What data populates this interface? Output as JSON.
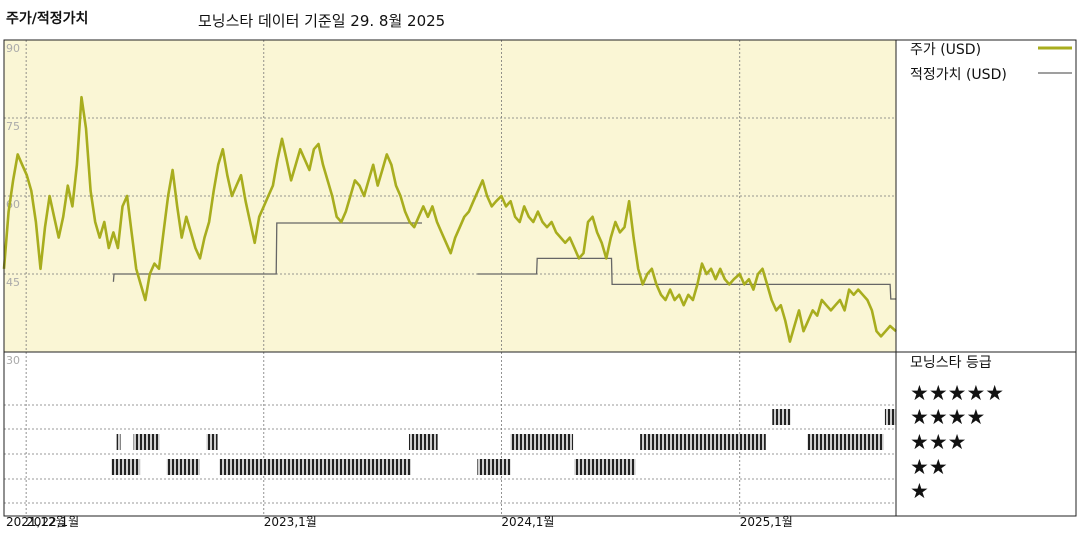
{
  "header": {
    "left_title": "주가/적정가치",
    "source": "모닝스타 데이터 기준일 29. 8월 2025"
  },
  "chart_data": {
    "type": "line",
    "y_ticks": [
      "90",
      "75",
      "60",
      "45",
      "30"
    ],
    "ylim": [
      30,
      90
    ],
    "x_ticks": [
      {
        "label": "2021,12월",
        "date": "2021-12"
      },
      {
        "label": "2022,1월",
        "date": "2022-01"
      },
      {
        "label": "2023,1월",
        "date": "2023-01"
      },
      {
        "label": "2024,1월",
        "date": "2024-01"
      },
      {
        "label": "2025,1월",
        "date": "2025-01"
      }
    ],
    "series": [
      {
        "name": "주가 (USD)",
        "color": "#a8ad1e",
        "points": [
          [
            "2021-11-28",
            46
          ],
          [
            "2021-12-05",
            57
          ],
          [
            "2021-12-12",
            63
          ],
          [
            "2021-12-19",
            68
          ],
          [
            "2021-12-26",
            66
          ],
          [
            "2022-01-02",
            64
          ],
          [
            "2022-01-09",
            61
          ],
          [
            "2022-01-16",
            55
          ],
          [
            "2022-01-23",
            46
          ],
          [
            "2022-01-30",
            54
          ],
          [
            "2022-02-06",
            60
          ],
          [
            "2022-02-13",
            56
          ],
          [
            "2022-02-20",
            52
          ],
          [
            "2022-02-27",
            56
          ],
          [
            "2022-03-06",
            62
          ],
          [
            "2022-03-13",
            58
          ],
          [
            "2022-03-20",
            66
          ],
          [
            "2022-03-27",
            79
          ],
          [
            "2022-04-03",
            73
          ],
          [
            "2022-04-10",
            61
          ],
          [
            "2022-04-17",
            55
          ],
          [
            "2022-04-24",
            52
          ],
          [
            "2022-05-01",
            55
          ],
          [
            "2022-05-08",
            50
          ],
          [
            "2022-05-15",
            53
          ],
          [
            "2022-05-22",
            50
          ],
          [
            "2022-05-29",
            58
          ],
          [
            "2022-06-05",
            60
          ],
          [
            "2022-06-12",
            53
          ],
          [
            "2022-06-19",
            46
          ],
          [
            "2022-06-26",
            43
          ],
          [
            "2022-07-03",
            40
          ],
          [
            "2022-07-10",
            45
          ],
          [
            "2022-07-17",
            47
          ],
          [
            "2022-07-24",
            46
          ],
          [
            "2022-07-31",
            53
          ],
          [
            "2022-08-07",
            60
          ],
          [
            "2022-08-14",
            65
          ],
          [
            "2022-08-21",
            58
          ],
          [
            "2022-08-28",
            52
          ],
          [
            "2022-09-04",
            56
          ],
          [
            "2022-09-11",
            53
          ],
          [
            "2022-09-18",
            50
          ],
          [
            "2022-09-25",
            48
          ],
          [
            "2022-10-02",
            52
          ],
          [
            "2022-10-09",
            55
          ],
          [
            "2022-10-16",
            61
          ],
          [
            "2022-10-23",
            66
          ],
          [
            "2022-10-30",
            69
          ],
          [
            "2022-11-06",
            64
          ],
          [
            "2022-11-13",
            60
          ],
          [
            "2022-11-20",
            62
          ],
          [
            "2022-11-27",
            64
          ],
          [
            "2022-12-04",
            59
          ],
          [
            "2022-12-11",
            55
          ],
          [
            "2022-12-18",
            51
          ],
          [
            "2022-12-25",
            56
          ],
          [
            "2023-01-01",
            58
          ],
          [
            "2023-01-08",
            60
          ],
          [
            "2023-01-15",
            62
          ],
          [
            "2023-01-22",
            67
          ],
          [
            "2023-01-29",
            71
          ],
          [
            "2023-02-05",
            67
          ],
          [
            "2023-02-12",
            63
          ],
          [
            "2023-02-19",
            66
          ],
          [
            "2023-02-26",
            69
          ],
          [
            "2023-03-05",
            67
          ],
          [
            "2023-03-12",
            65
          ],
          [
            "2023-03-19",
            69
          ],
          [
            "2023-03-26",
            70
          ],
          [
            "2023-04-02",
            66
          ],
          [
            "2023-04-09",
            63
          ],
          [
            "2023-04-16",
            60
          ],
          [
            "2023-04-23",
            56
          ],
          [
            "2023-04-30",
            55
          ],
          [
            "2023-05-07",
            57
          ],
          [
            "2023-05-14",
            60
          ],
          [
            "2023-05-21",
            63
          ],
          [
            "2023-05-28",
            62
          ],
          [
            "2023-06-04",
            60
          ],
          [
            "2023-06-11",
            63
          ],
          [
            "2023-06-18",
            66
          ],
          [
            "2023-06-25",
            62
          ],
          [
            "2023-07-02",
            65
          ],
          [
            "2023-07-09",
            68
          ],
          [
            "2023-07-16",
            66
          ],
          [
            "2023-07-23",
            62
          ],
          [
            "2023-07-30",
            60
          ],
          [
            "2023-08-06",
            57
          ],
          [
            "2023-08-13",
            55
          ],
          [
            "2023-08-20",
            54
          ],
          [
            "2023-08-27",
            56
          ],
          [
            "2023-09-03",
            58
          ],
          [
            "2023-09-10",
            56
          ],
          [
            "2023-09-17",
            58
          ],
          [
            "2023-09-24",
            55
          ],
          [
            "2023-10-01",
            53
          ],
          [
            "2023-10-08",
            51
          ],
          [
            "2023-10-15",
            49
          ],
          [
            "2023-10-22",
            52
          ],
          [
            "2023-10-29",
            54
          ],
          [
            "2023-11-05",
            56
          ],
          [
            "2023-11-12",
            57
          ],
          [
            "2023-11-19",
            59
          ],
          [
            "2023-11-26",
            61
          ],
          [
            "2023-12-03",
            63
          ],
          [
            "2023-12-10",
            60
          ],
          [
            "2023-12-17",
            58
          ],
          [
            "2023-12-24",
            59
          ],
          [
            "2024-01-01",
            60
          ],
          [
            "2024-01-08",
            58
          ],
          [
            "2024-01-15",
            59
          ],
          [
            "2024-01-22",
            56
          ],
          [
            "2024-01-29",
            55
          ],
          [
            "2024-02-05",
            58
          ],
          [
            "2024-02-12",
            56
          ],
          [
            "2024-02-19",
            55
          ],
          [
            "2024-02-26",
            57
          ],
          [
            "2024-03-04",
            55
          ],
          [
            "2024-03-11",
            54
          ],
          [
            "2024-03-18",
            55
          ],
          [
            "2024-03-25",
            53
          ],
          [
            "2024-04-01",
            52
          ],
          [
            "2024-04-08",
            51
          ],
          [
            "2024-04-15",
            52
          ],
          [
            "2024-04-22",
            50
          ],
          [
            "2024-04-29",
            48
          ],
          [
            "2024-05-06",
            49
          ],
          [
            "2024-05-13",
            55
          ],
          [
            "2024-05-20",
            56
          ],
          [
            "2024-05-27",
            53
          ],
          [
            "2024-06-03",
            51
          ],
          [
            "2024-06-10",
            48
          ],
          [
            "2024-06-17",
            52
          ],
          [
            "2024-06-24",
            55
          ],
          [
            "2024-07-01",
            53
          ],
          [
            "2024-07-08",
            54
          ],
          [
            "2024-07-15",
            59
          ],
          [
            "2024-07-22",
            52
          ],
          [
            "2024-07-29",
            46
          ],
          [
            "2024-08-05",
            43
          ],
          [
            "2024-08-12",
            45
          ],
          [
            "2024-08-19",
            46
          ],
          [
            "2024-08-26",
            43
          ],
          [
            "2024-09-02",
            41
          ],
          [
            "2024-09-09",
            40
          ],
          [
            "2024-09-16",
            42
          ],
          [
            "2024-09-23",
            40
          ],
          [
            "2024-09-30",
            41
          ],
          [
            "2024-10-07",
            39
          ],
          [
            "2024-10-14",
            41
          ],
          [
            "2024-10-21",
            40
          ],
          [
            "2024-10-28",
            43
          ],
          [
            "2024-11-04",
            47
          ],
          [
            "2024-11-11",
            45
          ],
          [
            "2024-11-18",
            46
          ],
          [
            "2024-11-25",
            44
          ],
          [
            "2024-12-02",
            46
          ],
          [
            "2024-12-09",
            44
          ],
          [
            "2024-12-16",
            43
          ],
          [
            "2024-12-23",
            44
          ],
          [
            "2025-01-01",
            45
          ],
          [
            "2025-01-08",
            43
          ],
          [
            "2025-01-15",
            44
          ],
          [
            "2025-01-22",
            42
          ],
          [
            "2025-01-29",
            45
          ],
          [
            "2025-02-05",
            46
          ],
          [
            "2025-02-12",
            43
          ],
          [
            "2025-02-19",
            40
          ],
          [
            "2025-02-26",
            38
          ],
          [
            "2025-03-05",
            39
          ],
          [
            "2025-03-12",
            36
          ],
          [
            "2025-03-19",
            32
          ],
          [
            "2025-03-26",
            35
          ],
          [
            "2025-04-02",
            38
          ],
          [
            "2025-04-09",
            34
          ],
          [
            "2025-04-16",
            36
          ],
          [
            "2025-04-23",
            38
          ],
          [
            "2025-04-30",
            37
          ],
          [
            "2025-05-07",
            40
          ],
          [
            "2025-05-14",
            39
          ],
          [
            "2025-05-21",
            38
          ],
          [
            "2025-05-28",
            39
          ],
          [
            "2025-06-04",
            40
          ],
          [
            "2025-06-11",
            38
          ],
          [
            "2025-06-18",
            42
          ],
          [
            "2025-06-25",
            41
          ],
          [
            "2025-07-02",
            42
          ],
          [
            "2025-07-09",
            41
          ],
          [
            "2025-07-16",
            40
          ],
          [
            "2025-07-23",
            38
          ],
          [
            "2025-07-30",
            34
          ],
          [
            "2025-08-06",
            33
          ],
          [
            "2025-08-13",
            34
          ],
          [
            "2025-08-20",
            35
          ],
          [
            "2025-08-29",
            34
          ]
        ]
      },
      {
        "name": "적정가치 (USD)",
        "color": "#666666",
        "segments": [
          [
            [
              "2022-05-15",
              43.5
            ],
            [
              "2022-05-16",
              45
            ],
            [
              "2023-01-20",
              45
            ],
            [
              "2023-01-21",
              54.8
            ],
            [
              "2023-09-01",
              54.8
            ]
          ],
          [
            [
              "2023-11-25",
              45
            ],
            [
              "2024-02-24",
              45
            ],
            [
              "2024-02-25",
              48
            ],
            [
              "2024-06-18",
              48
            ],
            [
              "2024-06-19",
              43
            ],
            [
              "2025-08-20",
              43
            ],
            [
              "2025-08-21",
              40.2
            ],
            [
              "2025-08-29",
              40.2
            ]
          ]
        ]
      }
    ],
    "rating_panel": {
      "title": "모닝스타 등급",
      "levels": [
        "★★★★★",
        "★★★★",
        "★★★",
        "★★",
        "★"
      ],
      "periods": [
        {
          "stars": 2,
          "start": "2022-05-12",
          "end": "2022-06-25"
        },
        {
          "stars": 3,
          "start": "2022-05-20",
          "end": "2022-05-26"
        },
        {
          "stars": 3,
          "start": "2022-06-15",
          "end": "2022-07-25"
        },
        {
          "stars": 2,
          "start": "2022-08-05",
          "end": "2022-09-25"
        },
        {
          "stars": 3,
          "start": "2022-10-05",
          "end": "2022-10-22"
        },
        {
          "stars": 2,
          "start": "2022-10-25",
          "end": "2023-08-15"
        },
        {
          "stars": 3,
          "start": "2023-08-12",
          "end": "2023-09-25"
        },
        {
          "stars": 2,
          "start": "2023-11-25",
          "end": "2024-01-15"
        },
        {
          "stars": 3,
          "start": "2024-01-15",
          "end": "2024-04-20"
        },
        {
          "stars": 2,
          "start": "2024-04-22",
          "end": "2024-07-25"
        },
        {
          "stars": 3,
          "start": "2024-08-01",
          "end": "2025-02-10"
        },
        {
          "stars": 4,
          "start": "2025-02-20",
          "end": "2025-03-20"
        },
        {
          "stars": 3,
          "start": "2025-04-15",
          "end": "2025-08-10"
        },
        {
          "stars": 4,
          "start": "2025-08-12",
          "end": "2025-08-29"
        }
      ]
    }
  }
}
